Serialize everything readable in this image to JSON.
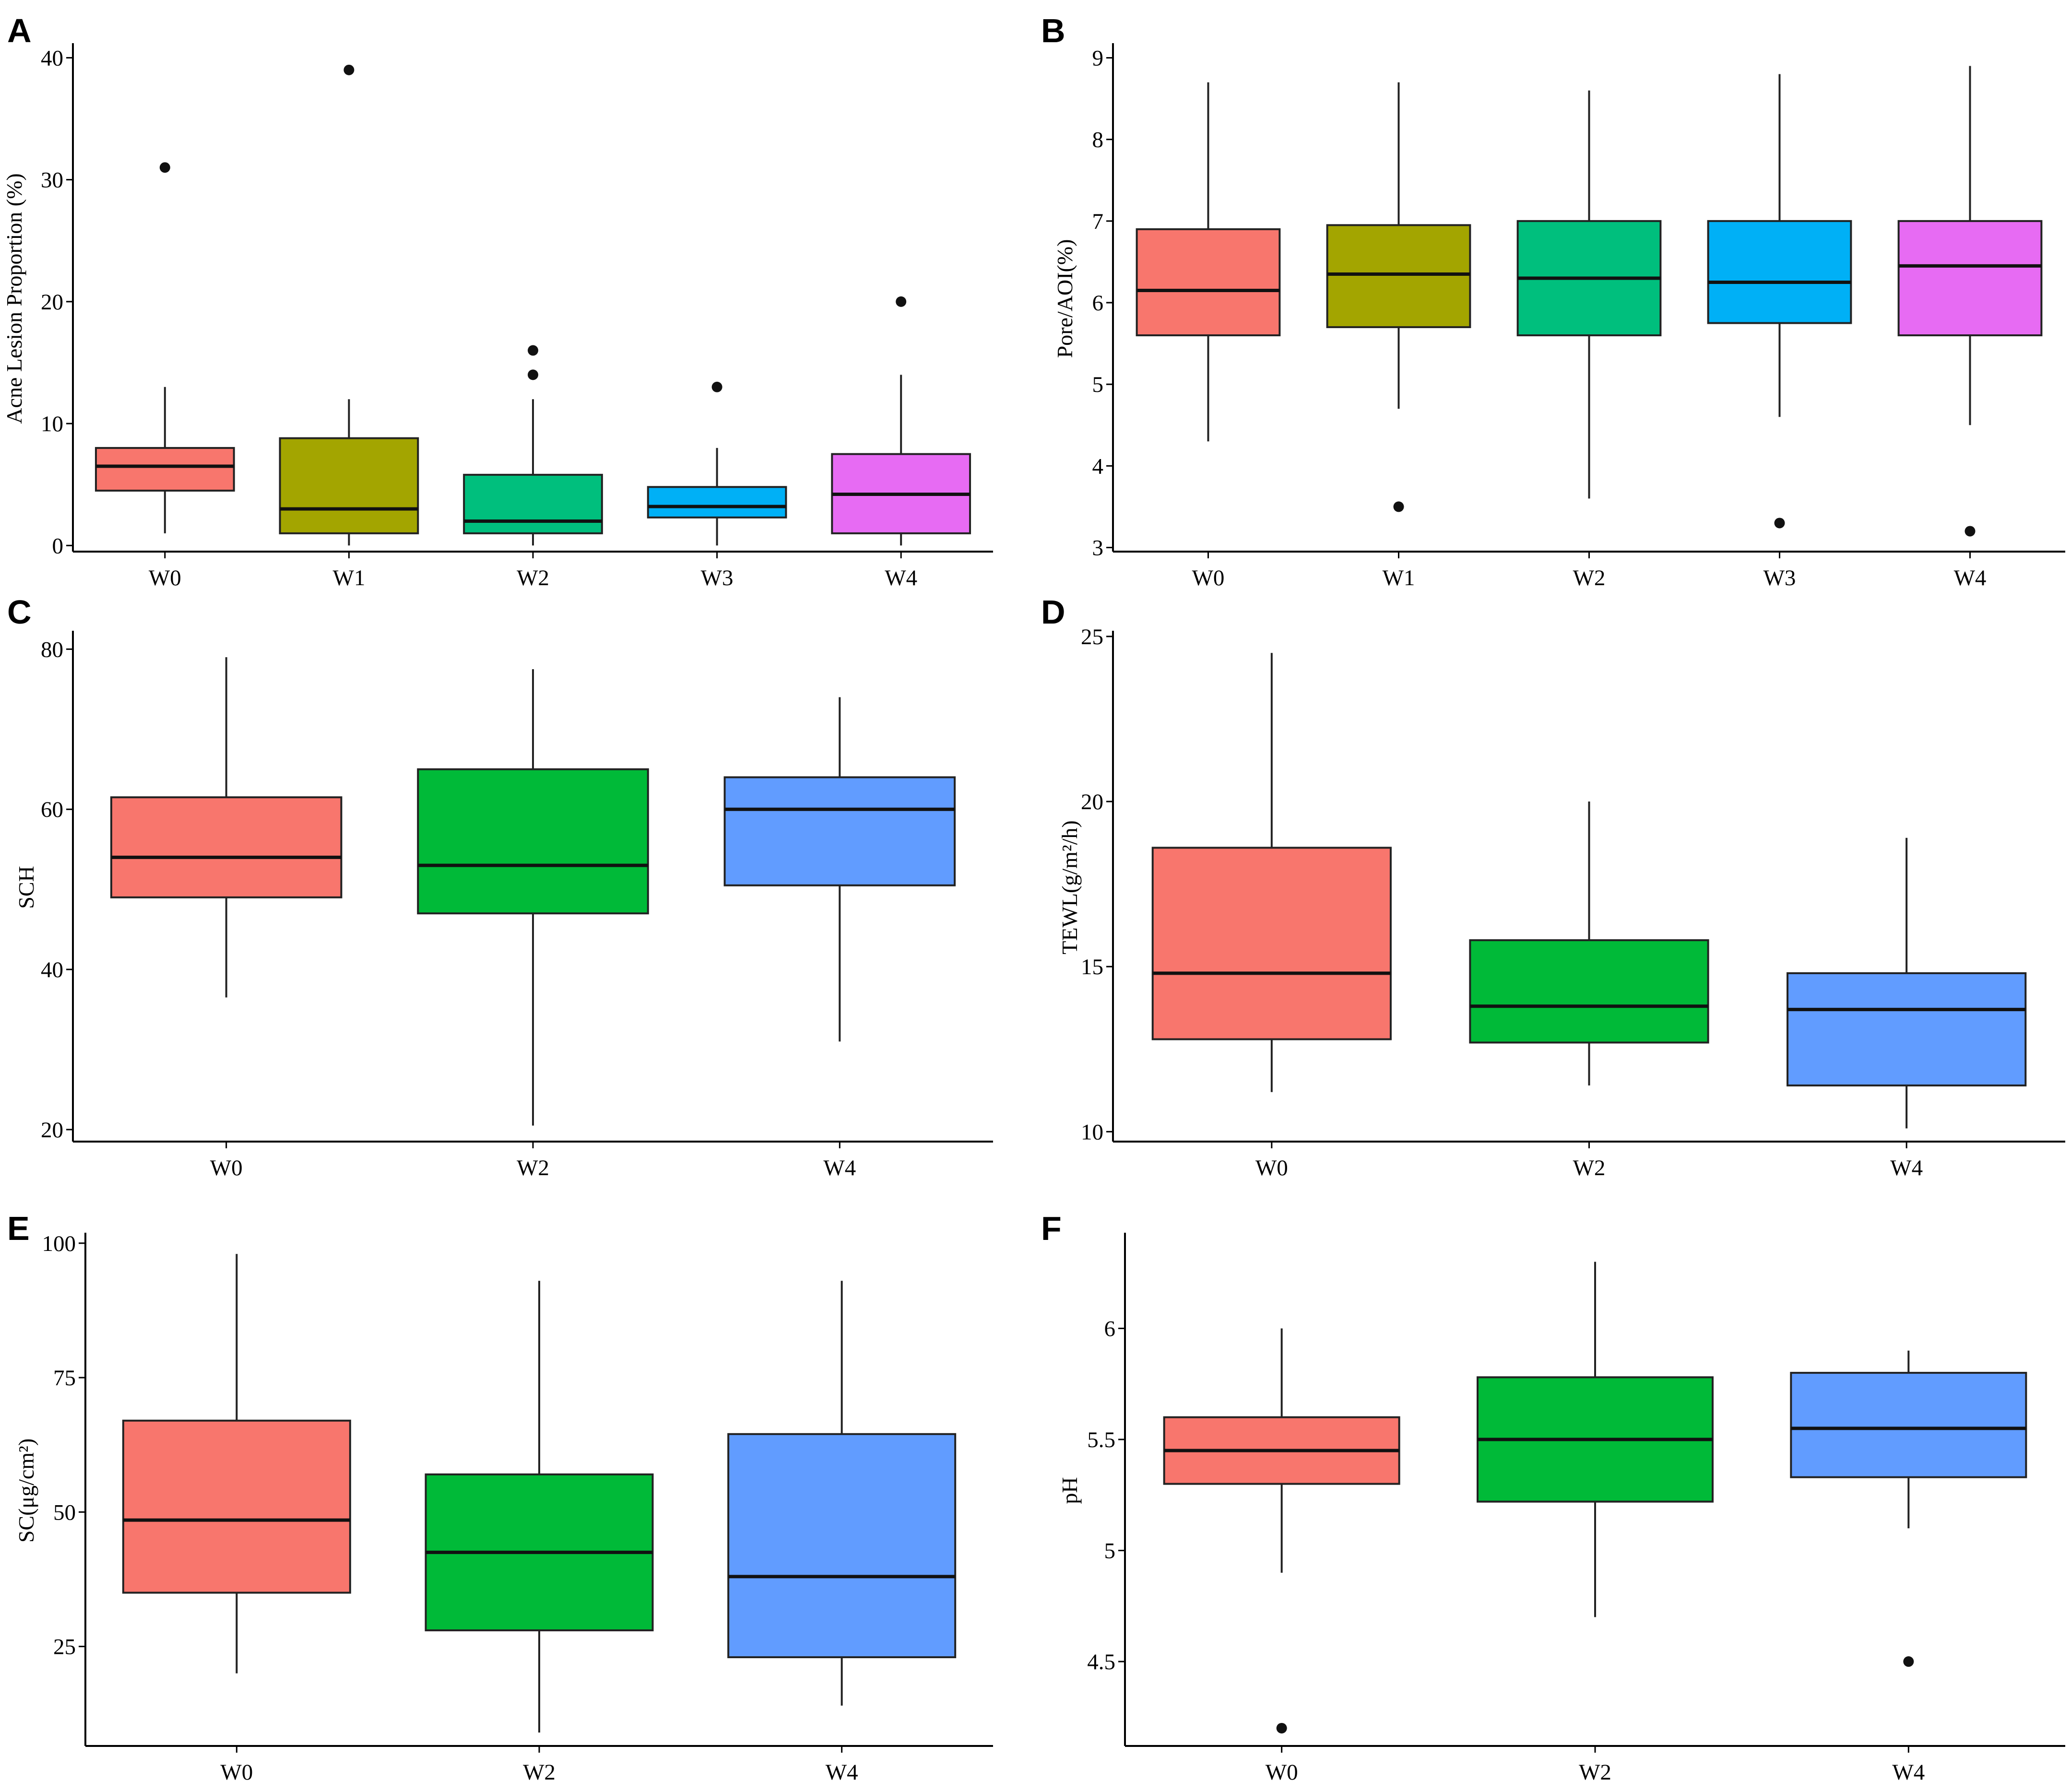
{
  "figure": {
    "panels": [
      "A",
      "B",
      "C",
      "D",
      "E",
      "F"
    ]
  },
  "chart_data": [
    {
      "panel": "A",
      "type": "boxplot",
      "ylabel": "Acne Lesion Proportion (%)",
      "ylim": [
        -0.5,
        41
      ],
      "yticks": [
        0,
        10,
        20,
        30,
        40
      ],
      "categories": [
        "W0",
        "W1",
        "W2",
        "W3",
        "W4"
      ],
      "colors": [
        "#f8766d",
        "#a3a500",
        "#00bf7d",
        "#00b0f6",
        "#e76bf3"
      ],
      "boxes": [
        {
          "min": 1,
          "q1": 4.5,
          "median": 6.5,
          "q3": 8,
          "max": 13,
          "outliers": [
            31
          ]
        },
        {
          "min": 0,
          "q1": 1,
          "median": 3,
          "q3": 8.8,
          "max": 12,
          "outliers": [
            39
          ]
        },
        {
          "min": 0,
          "q1": 1,
          "median": 2,
          "q3": 5.8,
          "max": 12,
          "outliers": [
            14,
            16
          ]
        },
        {
          "min": 0,
          "q1": 2.3,
          "median": 3.2,
          "q3": 4.8,
          "max": 8,
          "outliers": [
            13
          ]
        },
        {
          "min": 0,
          "q1": 1,
          "median": 4.2,
          "q3": 7.5,
          "max": 14,
          "outliers": [
            20
          ]
        }
      ]
    },
    {
      "panel": "B",
      "type": "boxplot",
      "ylabel": "Pore/AOI(%)",
      "ylim": [
        2.95,
        9.15
      ],
      "yticks": [
        3,
        4,
        5,
        6,
        7,
        8,
        9
      ],
      "categories": [
        "W0",
        "W1",
        "W2",
        "W3",
        "W4"
      ],
      "colors": [
        "#f8766d",
        "#a3a500",
        "#00bf7d",
        "#00b0f6",
        "#e76bf3"
      ],
      "boxes": [
        {
          "min": 4.3,
          "q1": 5.6,
          "median": 6.15,
          "q3": 6.9,
          "max": 8.7,
          "outliers": []
        },
        {
          "min": 4.7,
          "q1": 5.7,
          "median": 6.35,
          "q3": 6.95,
          "max": 8.7,
          "outliers": [
            3.5
          ]
        },
        {
          "min": 3.6,
          "q1": 5.6,
          "median": 6.3,
          "q3": 7.0,
          "max": 8.6,
          "outliers": []
        },
        {
          "min": 4.6,
          "q1": 5.75,
          "median": 6.25,
          "q3": 7.0,
          "max": 8.8,
          "outliers": [
            3.3
          ]
        },
        {
          "min": 4.5,
          "q1": 5.6,
          "median": 6.45,
          "q3": 7.0,
          "max": 8.9,
          "outliers": [
            3.2
          ]
        }
      ]
    },
    {
      "panel": "C",
      "type": "boxplot",
      "ylabel": "SCH",
      "ylim": [
        18.5,
        82
      ],
      "yticks": [
        20,
        40,
        60,
        80
      ],
      "categories": [
        "W0",
        "W2",
        "W4"
      ],
      "colors": [
        "#f8766d",
        "#00ba38",
        "#619cff"
      ],
      "boxes": [
        {
          "min": 36.5,
          "q1": 49,
          "median": 54,
          "q3": 61.5,
          "max": 79,
          "outliers": []
        },
        {
          "min": 20.5,
          "q1": 47,
          "median": 53,
          "q3": 65,
          "max": 77.5,
          "outliers": []
        },
        {
          "min": 31,
          "q1": 50.5,
          "median": 60,
          "q3": 64,
          "max": 74,
          "outliers": []
        }
      ]
    },
    {
      "panel": "D",
      "type": "boxplot",
      "ylabel": "TEWL(g/m²/h)",
      "ylim": [
        9.7,
        25.1
      ],
      "yticks": [
        10,
        15,
        20,
        25
      ],
      "categories": [
        "W0",
        "W2",
        "W4"
      ],
      "colors": [
        "#f8766d",
        "#00ba38",
        "#619cff"
      ],
      "boxes": [
        {
          "min": 11.2,
          "q1": 12.8,
          "median": 14.8,
          "q3": 18.6,
          "max": 24.5,
          "outliers": []
        },
        {
          "min": 11.4,
          "q1": 12.7,
          "median": 13.8,
          "q3": 15.8,
          "max": 20,
          "outliers": []
        },
        {
          "min": 10.1,
          "q1": 11.4,
          "median": 13.7,
          "q3": 14.8,
          "max": 18.9,
          "outliers": []
        }
      ]
    },
    {
      "panel": "E",
      "type": "boxplot",
      "ylabel": "SC(μg/cm²)",
      "ylim": [
        6.5,
        101.5
      ],
      "yticks": [
        25,
        50,
        75,
        100
      ],
      "categories": [
        "W0",
        "W2",
        "W4"
      ],
      "colors": [
        "#f8766d",
        "#00ba38",
        "#619cff"
      ],
      "boxes": [
        {
          "min": 20,
          "q1": 35,
          "median": 48.5,
          "q3": 67,
          "max": 98,
          "outliers": []
        },
        {
          "min": 9,
          "q1": 28,
          "median": 42.5,
          "q3": 57,
          "max": 93,
          "outliers": []
        },
        {
          "min": 14,
          "q1": 23,
          "median": 38,
          "q3": 64.5,
          "max": 93,
          "outliers": []
        }
      ]
    },
    {
      "panel": "F",
      "type": "boxplot",
      "ylabel": "pH",
      "ylim": [
        4.12,
        6.42
      ],
      "yticks": [
        4.5,
        5,
        5.5,
        6
      ],
      "categories": [
        "W0",
        "W2",
        "W4"
      ],
      "colors": [
        "#f8766d",
        "#00ba38",
        "#619cff"
      ],
      "boxes": [
        {
          "min": 4.9,
          "q1": 5.3,
          "median": 5.45,
          "q3": 5.6,
          "max": 6.0,
          "outliers": [
            4.2
          ]
        },
        {
          "min": 4.7,
          "q1": 5.22,
          "median": 5.5,
          "q3": 5.78,
          "max": 6.3,
          "outliers": []
        },
        {
          "min": 5.1,
          "q1": 5.33,
          "median": 5.55,
          "q3": 5.8,
          "max": 5.9,
          "outliers": [
            4.5
          ]
        }
      ]
    }
  ]
}
